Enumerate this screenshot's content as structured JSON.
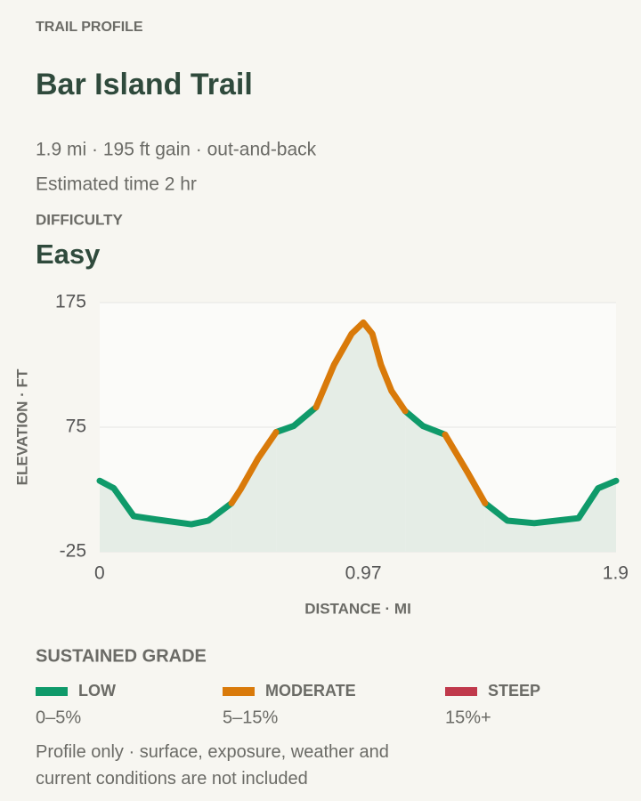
{
  "eyebrow": "TRAIL PROFILE",
  "title": "Bar Island Trail",
  "summary": "1.9 mi · 195 ft gain · out-and-back",
  "time": "Estimated time 2 hr",
  "difficulty_label": "DIFFICULTY",
  "difficulty": "Easy",
  "legend_title": "SUSTAINED GRADE",
  "footnote": "Profile only · surface, exposure, weather and current conditions are not included",
  "chart_data": {
    "type": "line",
    "xlabel": "DISTANCE · MI",
    "ylabel": "ELEVATION · FT",
    "x": [
      0,
      0.052,
      0.125,
      0.206,
      0.337,
      0.4,
      0.485,
      0.518,
      0.583,
      0.649,
      0.714,
      0.796,
      0.862,
      0.927,
      0.97,
      1.003,
      1.035,
      1.074,
      1.124,
      1.189,
      1.271,
      1.353,
      1.418,
      1.5,
      1.599,
      1.762,
      1.834,
      1.9
    ],
    "series": [
      {
        "name": "LOW",
        "range": "0–5%",
        "color": "#0f9a6a",
        "values": [
          32,
          26,
          3.6,
          1,
          -2.9,
          0,
          14,
          null,
          null,
          71,
          76,
          91,
          null,
          null,
          null,
          null,
          null,
          null,
          88,
          76,
          69,
          null,
          14,
          0,
          -2,
          2,
          26,
          32
        ]
      },
      {
        "name": "MODERATE",
        "range": "5–15%",
        "color": "#d97a0a",
        "values": [
          null,
          null,
          null,
          null,
          null,
          null,
          14,
          25,
          50,
          71,
          null,
          91,
          125,
          150,
          159,
          150,
          125,
          104,
          88,
          null,
          69,
          39,
          14,
          null,
          null,
          null,
          null,
          null
        ]
      },
      {
        "name": "STEEP",
        "range": "15%+",
        "color": "#c0394b",
        "values": [
          null,
          null,
          null,
          null,
          null,
          null,
          null,
          null,
          null,
          null,
          null,
          null,
          null,
          null,
          null,
          null,
          null,
          null,
          null,
          null,
          null,
          null,
          null,
          null,
          null,
          null,
          null,
          null
        ]
      }
    ],
    "area_color": "#e5ede6",
    "xlim": [
      0,
      1.9
    ],
    "xticks": [
      0,
      0.97,
      1.9
    ],
    "ylim": [
      -25,
      175
    ],
    "yticks": [
      -25,
      75,
      175
    ],
    "grid": true
  }
}
